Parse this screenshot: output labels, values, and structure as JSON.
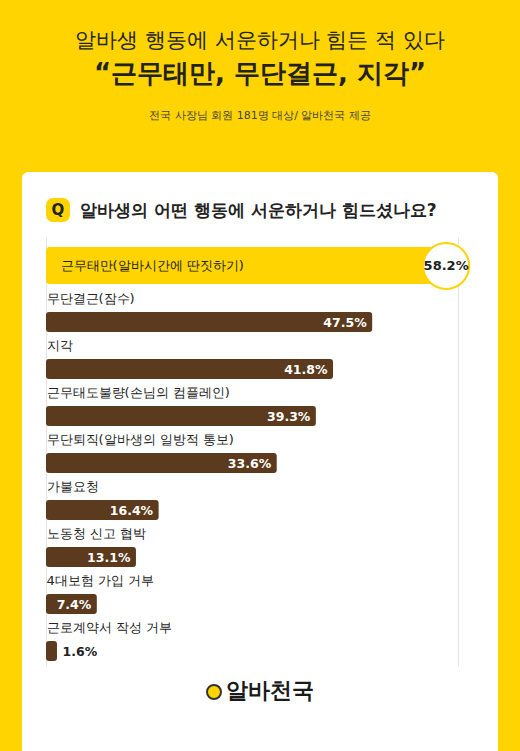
{
  "chart_data": {
    "type": "bar",
    "orientation": "horizontal",
    "title": "알바생 행동에 서운하거나 힘든 적 있다",
    "subtitle": "“근무태만, 무단결근, 지각”",
    "caption": "전국 사장님 회원 181명 대상/ 알바천국 제공",
    "question_mark": "Q",
    "question": "알바생의 어떤 행동에 서운하거나 힘드셨나요?",
    "source_logo": "알바천국",
    "categories": [
      "근무태만(알바시간에 딴짓하기)",
      "무단결근(잠수)",
      "지각",
      "근무태도불량(손님의 컴플레인)",
      "무단퇴직(알바생의 일방적 통보)",
      "가불요청",
      "노동청 신고 협박",
      "4대보험 가입 거부",
      "근로계약서 작성 거부"
    ],
    "values": [
      58.2,
      47.5,
      41.8,
      39.3,
      33.6,
      16.4,
      13.1,
      7.4,
      1.6
    ],
    "value_labels": [
      "58.2%",
      "47.5%",
      "41.8%",
      "39.3%",
      "33.6%",
      "16.4%",
      "13.1%",
      "7.4%",
      "1.6%"
    ],
    "colors": [
      "#FFD400",
      "#5b3a1e",
      "#5b3a1e",
      "#5b3a1e",
      "#5b3a1e",
      "#5b3a1e",
      "#5b3a1e",
      "#5b3a1e",
      "#5b3a1e"
    ],
    "xlim": [
      0,
      60
    ],
    "data_labels": true,
    "tick_labels": false,
    "grid": false
  }
}
